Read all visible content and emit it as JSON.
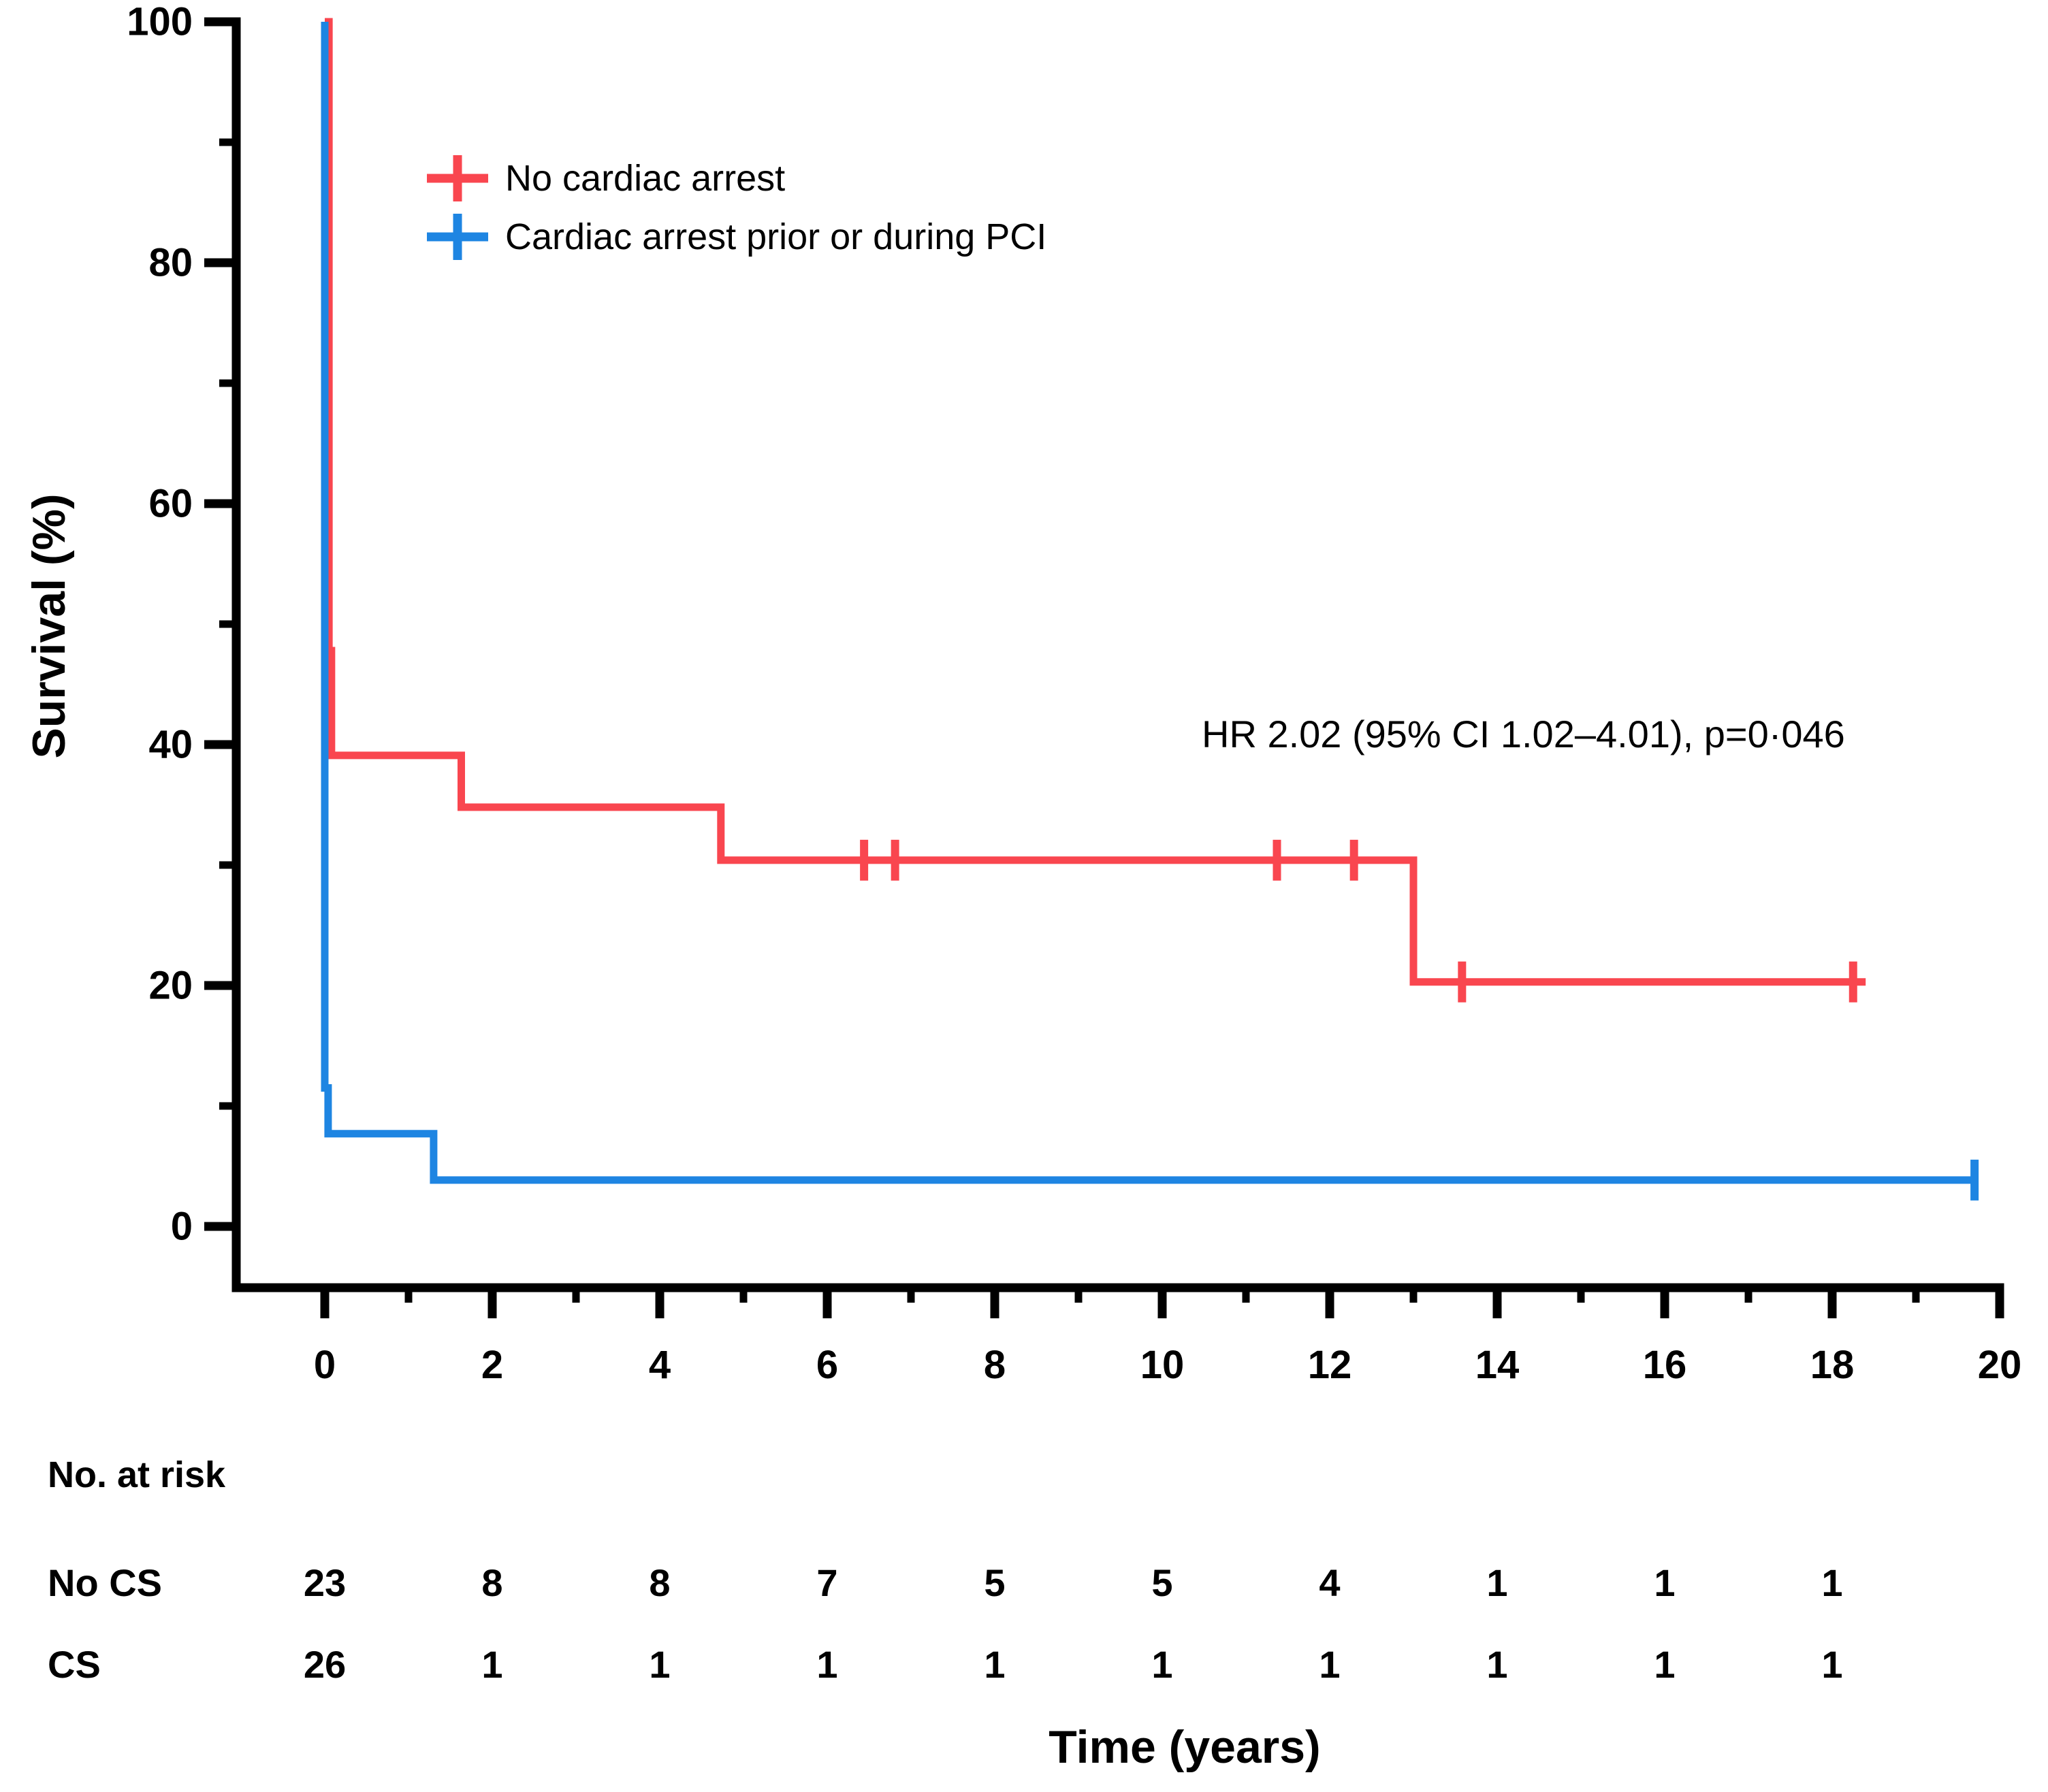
{
  "chart_data": {
    "type": "line",
    "subtype": "kaplan-meier-step",
    "title": "",
    "xlabel": "Time (years)",
    "ylabel": "Survival (%)",
    "xlim": [
      0,
      20
    ],
    "ylim": [
      0,
      100
    ],
    "grid": false,
    "x_major_ticks": [
      0,
      2,
      4,
      6,
      8,
      10,
      12,
      14,
      16,
      18,
      20
    ],
    "x_minor_ticks": [
      1,
      3,
      5,
      7,
      9,
      11,
      13,
      15,
      17,
      19
    ],
    "y_major_ticks": [
      0,
      20,
      40,
      60,
      80,
      100
    ],
    "y_minor_ticks": [
      10,
      30,
      50,
      70,
      90
    ],
    "annotation": "HR 2.02 (95% CI 1.02–4.01), p=0·046",
    "legend_position": "upper-left-inside",
    "axis_color": "#000000",
    "series": [
      {
        "name": "No cardiac arrest",
        "color": "#F9464F",
        "steps": [
          [
            0,
            100
          ],
          [
            0.05,
            47.8
          ],
          [
            0.08,
            39.1
          ],
          [
            1.63,
            34.8
          ],
          [
            4.73,
            30.4
          ],
          [
            13.0,
            20.3
          ]
        ],
        "end_time": 18.4,
        "censors": [
          [
            6.44,
            30.4
          ],
          [
            6.81,
            30.4
          ],
          [
            11.37,
            30.4
          ],
          [
            12.29,
            30.4
          ],
          [
            13.58,
            20.3
          ],
          [
            18.25,
            20.3
          ]
        ]
      },
      {
        "name": "Cardiac arrest prior or during PCI",
        "color": "#1E85E2",
        "steps": [
          [
            0,
            100
          ],
          [
            0.0,
            11.5
          ],
          [
            0.04,
            7.7
          ],
          [
            1.3,
            3.85
          ]
        ],
        "end_time": 19.72,
        "censors": [
          [
            19.7,
            3.85
          ]
        ]
      }
    ],
    "risk_table": {
      "header": "No. at risk",
      "times": [
        0,
        2,
        4,
        6,
        8,
        10,
        12,
        14,
        16,
        18
      ],
      "rows": [
        {
          "label": "No CS",
          "counts": [
            23,
            8,
            8,
            7,
            5,
            5,
            4,
            1,
            1,
            1
          ]
        },
        {
          "label": "CS",
          "counts": [
            26,
            1,
            1,
            1,
            1,
            1,
            1,
            1,
            1,
            1
          ]
        }
      ]
    }
  }
}
